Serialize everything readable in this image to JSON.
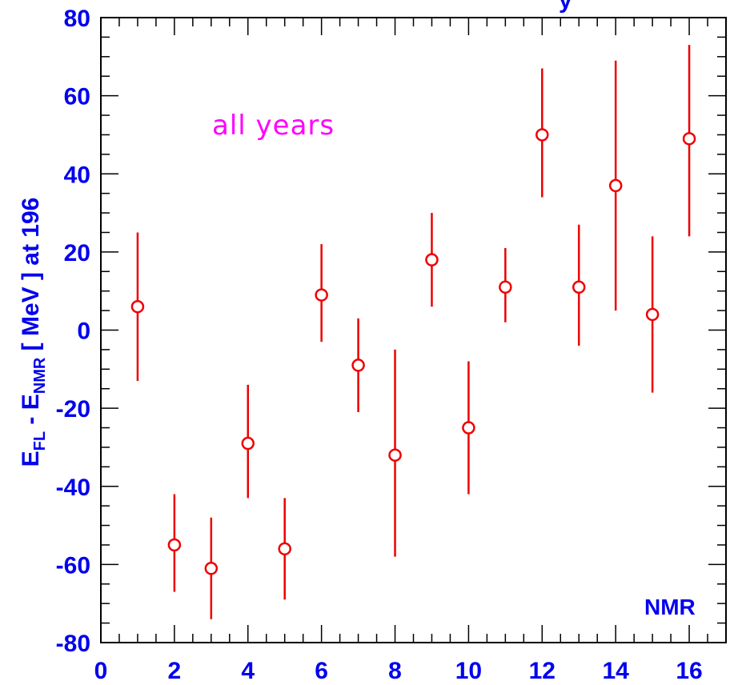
{
  "chart_data": {
    "type": "scatter",
    "title_fragment": "y",
    "ylabel": {
      "parts": [
        {
          "text": "E",
          "sub": "FL"
        },
        {
          "text": " - E",
          "sub": "NMR"
        },
        {
          "text": " [ MeV ] at 196",
          "sub": ""
        }
      ]
    },
    "annotation": "all years",
    "corner_label": "NMR",
    "xlim": [
      0,
      17
    ],
    "ylim": [
      -80,
      80
    ],
    "x_ticks": [
      0,
      2,
      4,
      6,
      8,
      10,
      12,
      14,
      16
    ],
    "y_ticks": [
      -80,
      -60,
      -40,
      -20,
      0,
      20,
      40,
      60,
      80
    ],
    "grid": false,
    "colors": {
      "points": "#ee0000",
      "axis_text": "#0000ee",
      "annotation": "#ff00ff"
    },
    "points": [
      {
        "x": 1,
        "y": 6,
        "ylow": -13,
        "yhigh": 25
      },
      {
        "x": 2,
        "y": -55,
        "ylow": -67,
        "yhigh": -42
      },
      {
        "x": 3,
        "y": -61,
        "ylow": -74,
        "yhigh": -48
      },
      {
        "x": 4,
        "y": -29,
        "ylow": -43,
        "yhigh": -14
      },
      {
        "x": 5,
        "y": -56,
        "ylow": -69,
        "yhigh": -43
      },
      {
        "x": 6,
        "y": 9,
        "ylow": -3,
        "yhigh": 22
      },
      {
        "x": 7,
        "y": -9,
        "ylow": -21,
        "yhigh": 3
      },
      {
        "x": 8,
        "y": -32,
        "ylow": -58,
        "yhigh": -5
      },
      {
        "x": 9,
        "y": 18,
        "ylow": 6,
        "yhigh": 30
      },
      {
        "x": 10,
        "y": -25,
        "ylow": -42,
        "yhigh": -8
      },
      {
        "x": 11,
        "y": 11,
        "ylow": 2,
        "yhigh": 21
      },
      {
        "x": 12,
        "y": 50,
        "ylow": 34,
        "yhigh": 67
      },
      {
        "x": 13,
        "y": 11,
        "ylow": -4,
        "yhigh": 27
      },
      {
        "x": 14,
        "y": 37,
        "ylow": 5,
        "yhigh": 69
      },
      {
        "x": 15,
        "y": 4,
        "ylow": -16,
        "yhigh": 24
      },
      {
        "x": 16,
        "y": 49,
        "ylow": 24,
        "yhigh": 73
      }
    ]
  }
}
